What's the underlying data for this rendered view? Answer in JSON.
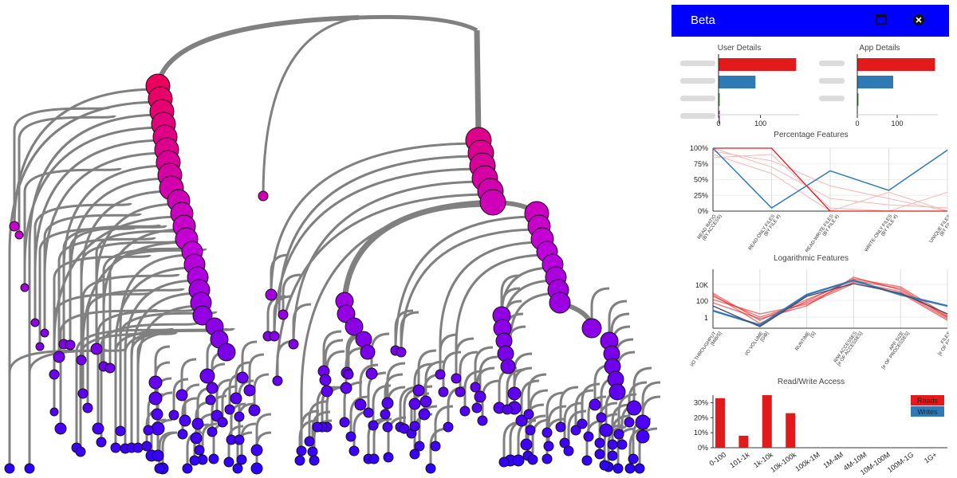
{
  "window": {
    "title": "Beta",
    "maximize_icon": "window-maximize-icon",
    "close_icon": "close-circle-icon"
  },
  "user_details": {
    "title": "User Details",
    "bars": [
      {
        "value": 185,
        "color": "#e31a1c"
      },
      {
        "value": 88,
        "color": "#2f7ab5"
      },
      {
        "value": 2,
        "color": "#33a02c"
      },
      {
        "value": 1,
        "color": "#9b2aa0"
      }
    ],
    "ticks": [
      "0",
      "100"
    ],
    "max": 190
  },
  "app_details": {
    "title": "App Details",
    "bars": [
      {
        "value": 195,
        "color": "#e31a1c"
      },
      {
        "value": 90,
        "color": "#2f7ab5"
      },
      {
        "value": 2,
        "color": "#33a02c"
      }
    ],
    "ticks": [
      "0",
      "100"
    ],
    "max": 200
  },
  "percentage_features": {
    "title": "Percentage Features",
    "y_ticks": [
      "100%",
      "75%",
      "50%",
      "25%",
      "0%"
    ],
    "axes": [
      "READ RATIO\n(BY ACCESS)",
      "READ-ONLY FILES\n(BY FILE #)",
      "READ-WRITE FILES\n(BY FILE #)",
      "WRITE-ONLY FILES\n(BY FILE #)",
      "UNIQUE FILES\n(BY FILE #)"
    ]
  },
  "logarithmic_features": {
    "title": "Logarithmic Features",
    "y_ticks": [
      "10K",
      "100",
      "1"
    ],
    "axes": [
      "I/O THROUGHPUT\n[MiB/S]",
      "I/O VOLUME\n[GiB]",
      "RUNTIME\n[S]",
      "R/W ACCESSES\n[# OF ACCESSES]",
      "APP SIZE\n[# OF PROCESSES]",
      "FILES\n[# OF FILES]"
    ]
  },
  "read_write_access": {
    "title": "Read/Write Access",
    "y_ticks": [
      "30%",
      "20%",
      "10%",
      "0%"
    ],
    "legend": [
      {
        "label": "Reads",
        "color": "#e31a1c"
      },
      {
        "label": "Writes",
        "color": "#2f7ab5"
      }
    ],
    "chart_data": {
      "type": "bar",
      "categories": [
        "0-100",
        "101-1k",
        "1k-10k",
        "10k-100k",
        "100k-1M",
        "1M-4M",
        "4M-10M",
        "10M-100M",
        "100M-1G",
        "1G+"
      ],
      "series": [
        {
          "name": "Reads",
          "values": [
            33,
            8,
            35,
            23,
            0,
            0,
            0,
            0,
            0,
            0
          ]
        },
        {
          "name": "Writes",
          "values": [
            0,
            0,
            0,
            0,
            0,
            0,
            0,
            0,
            0,
            0
          ]
        }
      ],
      "ylim": [
        0,
        35
      ]
    }
  }
}
